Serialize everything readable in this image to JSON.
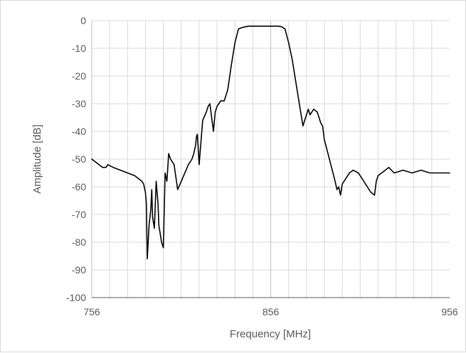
{
  "chart_data": {
    "type": "line",
    "title": "",
    "xlabel": "Frequency [MHz]",
    "ylabel": "Amplitude [dB]",
    "xlim": [
      756,
      956
    ],
    "ylim": [
      -100,
      0
    ],
    "x_ticks": [
      "756",
      "856",
      "956"
    ],
    "y_ticks": [
      "0",
      "-10",
      "-20",
      "-30",
      "-40",
      "-50",
      "-60",
      "-70",
      "-80",
      "-90",
      "-100"
    ],
    "grid": "on",
    "legend": "none",
    "series": [
      {
        "color": "#000000",
        "x": [
          756,
          760,
          762,
          764,
          765,
          768,
          772,
          776,
          780,
          782,
          784,
          785,
          786,
          786.5,
          787,
          788,
          789,
          789.5,
          790,
          791,
          792,
          793,
          793.5,
          794,
          795,
          796,
          797,
          798,
          799,
          800,
          802,
          804,
          806,
          808,
          810,
          812,
          813,
          814,
          814.5,
          815,
          816,
          818,
          820,
          821,
          822,
          823,
          824,
          825,
          826,
          827,
          828,
          830,
          832,
          834,
          836,
          838,
          840,
          842,
          844,
          846,
          848,
          850,
          855,
          860,
          862,
          864,
          866,
          868,
          870,
          872,
          874,
          876,
          877,
          878,
          880,
          882,
          883,
          884,
          885,
          886,
          888,
          890,
          892,
          893,
          894,
          895,
          896,
          898,
          900,
          902,
          905,
          906,
          908,
          910,
          912,
          914,
          915,
          916,
          918,
          920,
          922,
          925,
          930,
          935,
          940,
          945,
          950,
          956
        ],
        "y": [
          -50,
          -52,
          -53,
          -53,
          -52,
          -53,
          -54,
          -55,
          -56,
          -57,
          -58,
          -59,
          -62,
          -66,
          -86,
          -74,
          -68,
          -61,
          -71,
          -75,
          -58,
          -66,
          -74,
          -76,
          -80,
          -82,
          -55,
          -58,
          -48,
          -50,
          -52,
          -61,
          -58,
          -55,
          -52,
          -50,
          -48,
          -45,
          -42,
          -41,
          -52,
          -36,
          -33,
          -31,
          -30,
          -35,
          -40,
          -33,
          -31,
          -30,
          -29,
          -29,
          -25,
          -16,
          -8,
          -3,
          -2.5,
          -2.2,
          -2,
          -2,
          -2,
          -2,
          -2,
          -2,
          -2.2,
          -3,
          -8,
          -14,
          -22,
          -30,
          -38,
          -34,
          -32,
          -34,
          -32,
          -33,
          -35,
          -37,
          -38,
          -43,
          -48,
          -53,
          -58,
          -61,
          -60,
          -63,
          -59,
          -57,
          -55,
          -54,
          -55,
          -56,
          -58,
          -60,
          -62,
          -63,
          -58,
          -56,
          -55,
          -54,
          -53,
          -55,
          -54,
          -55,
          -54,
          -55,
          -55,
          -55
        ]
      }
    ]
  }
}
